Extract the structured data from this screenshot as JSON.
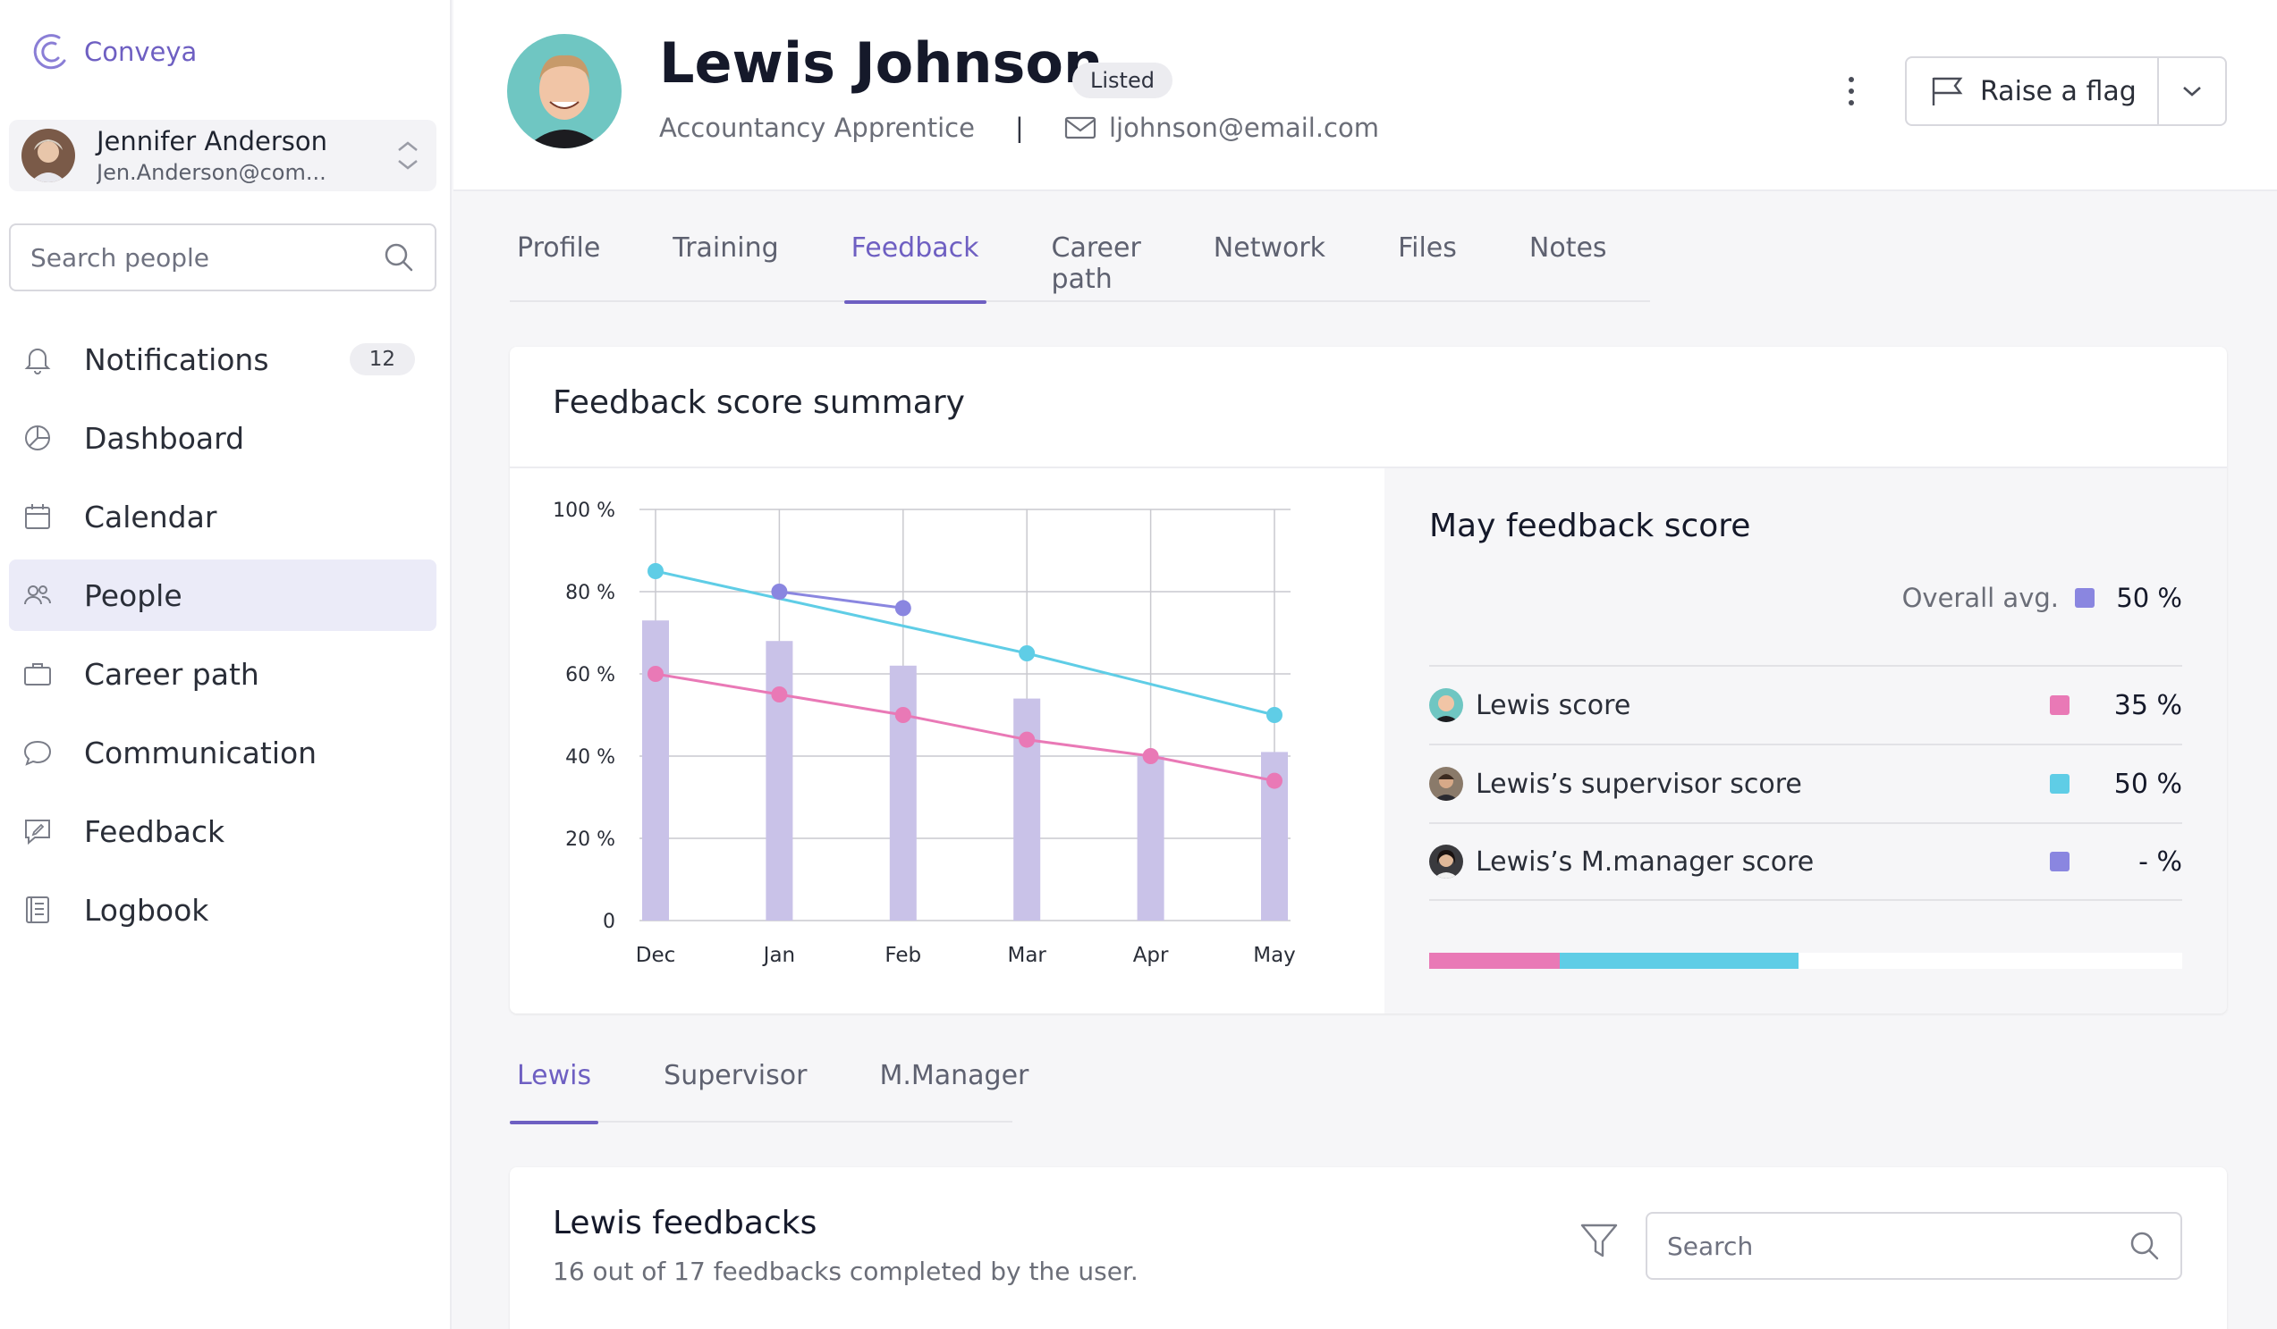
{
  "app": {
    "name": "Conveya"
  },
  "current_user": {
    "name": "Jennifer Anderson",
    "email": "Jen.Anderson@com..."
  },
  "sidebar": {
    "search_placeholder": "Search people",
    "items": [
      {
        "label": "Notifications",
        "icon": "bell-icon",
        "badge": "12"
      },
      {
        "label": "Dashboard",
        "icon": "dashboard-icon"
      },
      {
        "label": "Calendar",
        "icon": "calendar-icon"
      },
      {
        "label": "People",
        "icon": "people-icon",
        "active": true
      },
      {
        "label": "Career path",
        "icon": "briefcase-icon"
      },
      {
        "label": "Communication",
        "icon": "chat-icon"
      },
      {
        "label": "Feedback",
        "icon": "feedback-icon"
      },
      {
        "label": "Logbook",
        "icon": "logbook-icon"
      }
    ]
  },
  "profile": {
    "name": "Lewis Johnson",
    "status": "Listed",
    "role": "Accountancy Apprentice",
    "separator": "|",
    "email": "ljohnson@email.com",
    "raise_flag_label": "Raise a flag"
  },
  "tabs": [
    "Profile",
    "Training",
    "Feedback",
    "Career path",
    "Network",
    "Files",
    "Notes"
  ],
  "active_tab": "Feedback",
  "summary": {
    "title": "Feedback score summary",
    "panel_title": "May feedback score",
    "overall_label": "Overall avg.",
    "overall_value": "50 %",
    "rows": [
      {
        "label": "Lewis score",
        "value": "35 %",
        "color": "#e979b6"
      },
      {
        "label": "Lewis’s supervisor score",
        "value": "50 %",
        "color": "#5fcde6"
      },
      {
        "label": "Lewis’s M.manager score",
        "value": "- %",
        "color": "#8a86e0"
      }
    ],
    "score_bar": [
      {
        "name": "Lewis score",
        "fraction": 0.173,
        "color": "#e979b6"
      },
      {
        "name": "Lewis’s supervisor score",
        "fraction": 0.318,
        "color": "#5fcde6"
      }
    ]
  },
  "colors": {
    "accent": "#6e5fc2",
    "bar": "#c9c2e8",
    "lewis": "#e979b6",
    "supervisor": "#5fcde6",
    "manager": "#8a86e0",
    "overall": "#8a86e0"
  },
  "chart_data": {
    "type": "bar",
    "categories": [
      "Dec",
      "Jan",
      "Feb",
      "Mar",
      "Apr",
      "May"
    ],
    "ylim": [
      0,
      100
    ],
    "yticks": [
      "0",
      "20 %",
      "40 %",
      "60 %",
      "80 %",
      "100 %"
    ],
    "grid": true,
    "series": [
      {
        "kind": "bar",
        "values": [
          73,
          68,
          62,
          54,
          40,
          41
        ]
      },
      {
        "kind": "line",
        "values": [
          85,
          null,
          null,
          65,
          null,
          50
        ]
      },
      {
        "kind": "line",
        "values": [
          null,
          80,
          76,
          null,
          null,
          null
        ]
      },
      {
        "kind": "line",
        "values": [
          60,
          55,
          50,
          44,
          40,
          34
        ]
      }
    ]
  },
  "subtabs": [
    "Lewis",
    "Supervisor",
    "M.Manager"
  ],
  "active_subtab": "Lewis",
  "feedbacks": {
    "title": "Lewis feedbacks",
    "subtitle": "16 out of 17 feedbacks completed by the user.",
    "search_placeholder": "Search"
  }
}
